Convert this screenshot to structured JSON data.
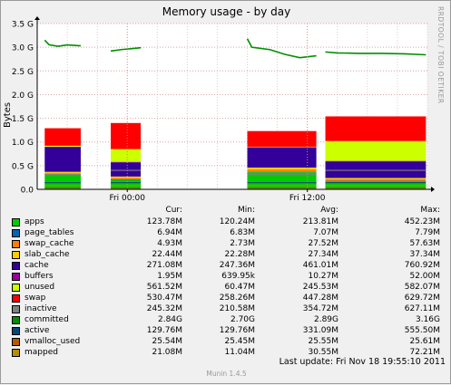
{
  "chart": {
    "title": "Memory usage - by day",
    "ylabel": "Bytes",
    "side_text": "RRDTOOL / TOBI OETIKER",
    "footer_last_update": "Last update:  Fri Nov 18 19:55:10 2011",
    "footer_version": "Munin 1.4.5"
  },
  "legend_headers": {
    "cur": "Cur:",
    "min": "Min:",
    "avg": "Avg:",
    "max": "Max:"
  },
  "legend": [
    {
      "name": "apps",
      "color": "#00cc00",
      "cur": "123.78M",
      "min": "120.24M",
      "avg": "213.81M",
      "max": "452.23M"
    },
    {
      "name": "page_tables",
      "color": "#0066b3",
      "cur": "6.94M",
      "min": "6.83M",
      "avg": "7.07M",
      "max": "7.79M"
    },
    {
      "name": "swap_cache",
      "color": "#ff8000",
      "cur": "4.93M",
      "min": "2.73M",
      "avg": "27.52M",
      "max": "57.63M"
    },
    {
      "name": "slab_cache",
      "color": "#ffcc00",
      "cur": "22.44M",
      "min": "22.28M",
      "avg": "27.34M",
      "max": "37.34M"
    },
    {
      "name": "cache",
      "color": "#330099",
      "cur": "271.08M",
      "min": "247.36M",
      "avg": "461.01M",
      "max": "760.92M"
    },
    {
      "name": "buffers",
      "color": "#990099",
      "cur": "1.95M",
      "min": "639.95k",
      "avg": "10.27M",
      "max": "52.00M"
    },
    {
      "name": "unused",
      "color": "#ccff00",
      "cur": "561.52M",
      "min": "60.47M",
      "avg": "245.53M",
      "max": "582.07M"
    },
    {
      "name": "swap",
      "color": "#ff0000",
      "cur": "530.47M",
      "min": "258.26M",
      "avg": "447.28M",
      "max": "629.72M"
    },
    {
      "name": "inactive",
      "color": "#808080",
      "cur": "245.32M",
      "min": "210.58M",
      "avg": "354.72M",
      "max": "627.11M"
    },
    {
      "name": "committed",
      "color": "#008f00",
      "cur": "2.84G",
      "min": "2.70G",
      "avg": "2.89G",
      "max": "3.16G"
    },
    {
      "name": "active",
      "color": "#00487d",
      "cur": "129.76M",
      "min": "129.76M",
      "avg": "331.09M",
      "max": "555.50M"
    },
    {
      "name": "vmalloc_used",
      "color": "#b35a00",
      "cur": "25.54M",
      "min": "25.45M",
      "avg": "25.55M",
      "max": "25.61M"
    },
    {
      "name": "mapped",
      "color": "#b38f00",
      "cur": "21.08M",
      "min": "11.04M",
      "avg": "30.55M",
      "max": "72.21M"
    }
  ],
  "chart_data": {
    "type": "area",
    "title": "Memory usage - by day",
    "ylabel": "Bytes",
    "y_unit": "GB",
    "ylim": [
      0,
      3.5
    ],
    "yticks": [
      0,
      0.5,
      1.0,
      1.5,
      2.0,
      2.5,
      3.0,
      3.5
    ],
    "ytick_labels": [
      "0.0",
      "0.5 G",
      "1.0 G",
      "1.5 G",
      "2.0 G",
      "2.5 G",
      "3.0 G",
      "3.5 G"
    ],
    "x_hours_range": [
      -6,
      20
    ],
    "xticks": [
      0,
      12
    ],
    "xtick_labels": [
      "Fri 00:00",
      "Fri 12:00"
    ],
    "grid": true,
    "segments": [
      {
        "start": -5.5,
        "end": -3.1,
        "apps": 0.3,
        "page_tables": 0.01,
        "swap_cache": 0.03,
        "slab_cache": 0.03,
        "cache": 0.52,
        "buffers": 0.01,
        "unused": 0.02,
        "swap": 0.37
      },
      {
        "start": -1.1,
        "end": 0.9,
        "apps": 0.2,
        "page_tables": 0.01,
        "swap_cache": 0.03,
        "slab_cache": 0.03,
        "cache": 0.3,
        "buffers": 0.01,
        "unused": 0.27,
        "swap": 0.55
      },
      {
        "start": 8.0,
        "end": 12.6,
        "apps": 0.36,
        "page_tables": 0.01,
        "swap_cache": 0.05,
        "slab_cache": 0.04,
        "cache": 0.42,
        "buffers": 0.01,
        "unused": 0.01,
        "swap": 0.33
      },
      {
        "start": 13.2,
        "end": 19.9,
        "apps": 0.17,
        "page_tables": 0.01,
        "swap_cache": 0.03,
        "slab_cache": 0.03,
        "cache": 0.35,
        "buffers": 0.01,
        "unused": 0.42,
        "swap": 0.52
      }
    ],
    "committed_series": [
      {
        "x": [
          -5.5,
          -5.2,
          -4.6,
          -4.0,
          -3.1
        ],
        "y": [
          3.15,
          3.05,
          3.02,
          3.05,
          3.03
        ]
      },
      {
        "x": [
          -1.1,
          -0.4,
          0.3,
          0.9
        ],
        "y": [
          2.92,
          2.95,
          2.97,
          2.99
        ]
      },
      {
        "x": [
          8.0,
          8.3,
          9.5,
          10.5,
          11.5,
          12.6
        ],
        "y": [
          3.18,
          3.0,
          2.95,
          2.85,
          2.78,
          2.82
        ]
      },
      {
        "x": [
          13.2,
          14.0,
          15.5,
          17.0,
          18.5,
          19.9
        ],
        "y": [
          2.9,
          2.88,
          2.87,
          2.87,
          2.86,
          2.84
        ]
      }
    ]
  }
}
